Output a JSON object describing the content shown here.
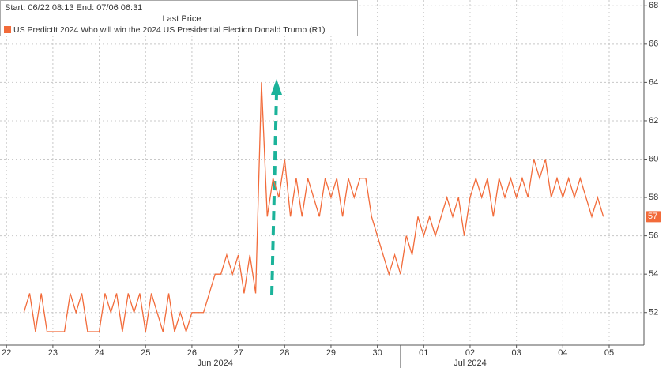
{
  "chart_data": {
    "type": "line",
    "legend_header": "Start: 06/22 08:13 End: 07/06 06:31",
    "legend_subtitle": "Last Price",
    "month_labels": [
      "Jun 2024",
      "Jul 2024"
    ],
    "x": [
      0.375,
      0.5,
      0.625,
      0.75,
      0.875,
      1.0,
      1.125,
      1.25,
      1.375,
      1.5,
      1.625,
      1.75,
      1.875,
      2.0,
      2.125,
      2.25,
      2.375,
      2.5,
      2.625,
      2.75,
      2.875,
      3.0,
      3.125,
      3.25,
      3.375,
      3.5,
      3.625,
      3.75,
      3.875,
      4.0,
      4.125,
      4.25,
      4.375,
      4.5,
      4.625,
      4.75,
      4.875,
      5.0,
      5.125,
      5.25,
      5.375,
      5.5,
      5.625,
      5.75,
      5.875,
      6.0,
      6.125,
      6.25,
      6.375,
      6.5,
      6.625,
      6.75,
      6.875,
      7.0,
      7.125,
      7.25,
      7.375,
      7.5,
      7.625,
      7.75,
      7.875,
      8.0,
      8.125,
      8.25,
      8.375,
      8.5,
      8.625,
      8.75,
      8.875,
      9.0,
      9.125,
      9.25,
      9.375,
      9.5,
      9.625,
      9.75,
      9.875,
      10.0,
      10.125,
      10.25,
      10.375,
      10.5,
      10.625,
      10.75,
      10.875,
      11.0,
      11.125,
      11.25,
      11.375,
      11.5,
      11.625,
      11.75,
      11.875,
      12.0,
      12.125,
      12.25,
      12.375,
      12.5,
      12.625,
      12.75,
      12.875
    ],
    "series": [
      {
        "name": "US PredictIt 2024 Who will win the 2024 US Presidential Election Donald Trump  (R1)",
        "color": "#f26b3a",
        "values": [
          52,
          53,
          51,
          53,
          51,
          51,
          51,
          51,
          53,
          52,
          53,
          51,
          51,
          51,
          53,
          52,
          53,
          51,
          53,
          52,
          53,
          51,
          53,
          52,
          51,
          53,
          51,
          52,
          51,
          52,
          52,
          52,
          53,
          54,
          54,
          55,
          54,
          55,
          53,
          55,
          53,
          64,
          57,
          59,
          58,
          60,
          57,
          59,
          57,
          59,
          58,
          57,
          59,
          58,
          59,
          57,
          59,
          58,
          59,
          59,
          57,
          56,
          55,
          54,
          55,
          54,
          56,
          55,
          57,
          56,
          57,
          56,
          57,
          58,
          57,
          58,
          56,
          58,
          59,
          58,
          59,
          57,
          59,
          58,
          59,
          58,
          59,
          58,
          60,
          59,
          60,
          58,
          59,
          58,
          59,
          58,
          59,
          58,
          57,
          58,
          57
        ]
      }
    ],
    "xlim": [
      -0.14,
      13.75
    ],
    "xticks": [
      {
        "value": 0,
        "label": "22"
      },
      {
        "value": 1,
        "label": "23"
      },
      {
        "value": 2,
        "label": "24"
      },
      {
        "value": 3,
        "label": "25"
      },
      {
        "value": 4,
        "label": "26"
      },
      {
        "value": 5,
        "label": "27"
      },
      {
        "value": 6,
        "label": "28"
      },
      {
        "value": 7,
        "label": "29"
      },
      {
        "value": 8,
        "label": "30"
      },
      {
        "value": 9,
        "label": "01"
      },
      {
        "value": 10,
        "label": "02"
      },
      {
        "value": 11,
        "label": "03"
      },
      {
        "value": 12,
        "label": "04"
      },
      {
        "value": 13,
        "label": "05"
      }
    ],
    "ylim": [
      50.3,
      68.3
    ],
    "yticks": [
      52,
      54,
      56,
      58,
      60,
      62,
      64,
      66,
      68
    ],
    "grid": true
  }
}
